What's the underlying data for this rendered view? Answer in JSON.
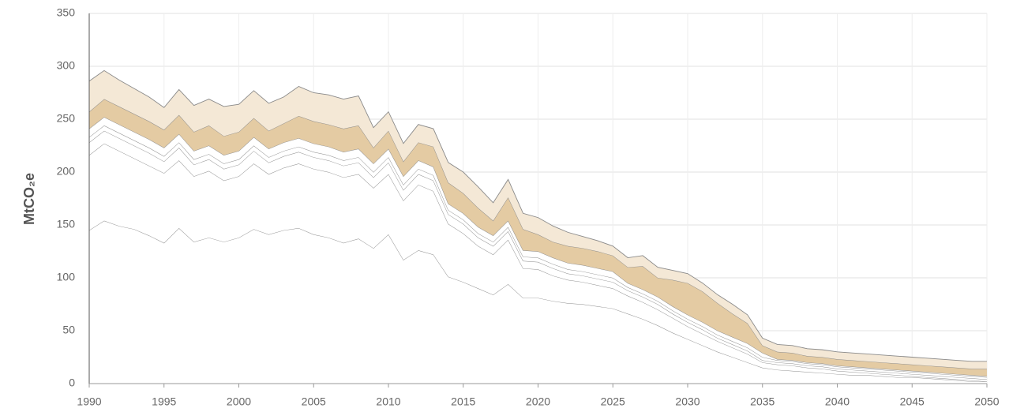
{
  "chart_data": {
    "type": "stacked-area",
    "y_label": "MtCO₂e",
    "x": [
      1990,
      1991,
      1992,
      1993,
      1994,
      1995,
      1996,
      1997,
      1998,
      1999,
      2000,
      2001,
      2002,
      2003,
      2004,
      2005,
      2006,
      2007,
      2008,
      2009,
      2010,
      2011,
      2012,
      2013,
      2014,
      2015,
      2016,
      2017,
      2018,
      2019,
      2020,
      2021,
      2022,
      2023,
      2024,
      2025,
      2026,
      2027,
      2028,
      2029,
      2030,
      2031,
      2032,
      2033,
      2034,
      2035,
      2036,
      2037,
      2038,
      2039,
      2040,
      2041,
      2042,
      2043,
      2044,
      2045,
      2046,
      2047,
      2048,
      2049,
      2050
    ],
    "xlim": [
      1990,
      2050
    ],
    "xticks": [
      1990,
      1995,
      2000,
      2005,
      2010,
      2015,
      2020,
      2025,
      2030,
      2035,
      2040,
      2045,
      2050
    ],
    "ylim": [
      0,
      350
    ],
    "yticks": [
      0,
      50,
      100,
      150,
      200,
      250,
      300,
      350
    ],
    "grid": true,
    "series": [
      {
        "color": "#ffffff",
        "values": [
          145,
          154,
          149,
          146,
          140,
          133,
          147,
          134,
          138,
          134,
          138,
          146,
          141,
          145,
          147,
          141,
          138,
          133,
          137,
          128,
          141,
          117,
          126,
          122,
          101,
          96,
          90,
          84,
          94,
          81,
          81,
          78,
          76,
          75,
          73,
          71,
          66,
          61,
          55,
          48,
          42,
          36,
          30,
          25,
          20,
          15,
          13,
          12,
          11,
          10,
          9,
          8,
          8,
          7,
          6,
          6,
          5,
          4,
          3,
          2,
          2
        ]
      },
      {
        "color": "#ffffff",
        "values": [
          71,
          73,
          71,
          67,
          66,
          66,
          64,
          62,
          63,
          58,
          58,
          62,
          57,
          59,
          61,
          62,
          62,
          62,
          61,
          57,
          57,
          56,
          62,
          60,
          50,
          46,
          40,
          38,
          42,
          28,
          27,
          24,
          22,
          21,
          20,
          19,
          17,
          16,
          15,
          14,
          12,
          11,
          10,
          9,
          8,
          5,
          5,
          5,
          4,
          4,
          3,
          3,
          2,
          2,
          2,
          1,
          1,
          1,
          1,
          1,
          0
        ]
      },
      {
        "color": "#ffffff",
        "values": [
          12,
          12,
          12,
          12,
          12,
          11,
          12,
          11,
          11,
          11,
          11,
          12,
          11,
          11,
          11,
          11,
          11,
          11,
          11,
          10,
          11,
          10,
          10,
          10,
          9,
          9,
          8,
          8,
          8,
          7,
          7,
          7,
          6,
          6,
          6,
          6,
          5,
          5,
          5,
          4,
          4,
          4,
          3,
          3,
          3,
          2,
          2,
          2,
          2,
          2,
          2,
          2,
          2,
          2,
          2,
          2,
          2,
          2,
          2,
          2,
          2
        ]
      },
      {
        "color": "#ffffff",
        "values": [
          5,
          5,
          5,
          5,
          5,
          5,
          5,
          5,
          5,
          5,
          5,
          5,
          5,
          5,
          5,
          5,
          5,
          5,
          5,
          5,
          5,
          5,
          5,
          5,
          4,
          4,
          4,
          4,
          4,
          4,
          4,
          4,
          4,
          4,
          4,
          4,
          3,
          3,
          3,
          3,
          3,
          3,
          3,
          3,
          3,
          3,
          2,
          2,
          2,
          2,
          2,
          2,
          2,
          2,
          2,
          2,
          2,
          2,
          2,
          2,
          2
        ]
      },
      {
        "color": "#ffffff",
        "values": [
          8,
          8,
          8,
          8,
          8,
          8,
          8,
          8,
          8,
          8,
          8,
          8,
          8,
          8,
          8,
          8,
          8,
          8,
          8,
          8,
          8,
          8,
          8,
          8,
          6,
          6,
          6,
          6,
          6,
          6,
          6,
          6,
          6,
          6,
          6,
          6,
          4,
          4,
          4,
          4,
          4,
          4,
          4,
          4,
          4,
          4,
          1,
          1,
          1,
          1,
          1,
          1,
          1,
          1,
          1,
          1,
          1,
          1,
          1,
          1,
          1
        ]
      },
      {
        "color": "#e4cba3",
        "values": [
          16,
          17,
          17,
          17,
          17,
          17,
          18,
          18,
          19,
          18,
          18,
          18,
          17,
          18,
          21,
          21,
          21,
          22,
          22,
          15,
          17,
          14,
          17,
          19,
          20,
          19,
          18,
          14,
          22,
          20,
          16,
          15,
          16,
          16,
          16,
          15,
          15,
          22,
          18,
          25,
          30,
          29,
          26,
          22,
          19,
          7,
          7,
          7,
          6,
          6,
          6,
          6,
          6,
          6,
          6,
          6,
          6,
          6,
          6,
          6,
          7
        ]
      },
      {
        "color": "#f4e8d6",
        "values": [
          29,
          27,
          25,
          24,
          23,
          21,
          24,
          25,
          25,
          28,
          26,
          26,
          26,
          25,
          28,
          27,
          28,
          28,
          28,
          19,
          18,
          17,
          17,
          17,
          19,
          20,
          20,
          17,
          17,
          15,
          16,
          15,
          13,
          11,
          10,
          9,
          9,
          10,
          10,
          9,
          9,
          8,
          8,
          9,
          8,
          7,
          7,
          7,
          7,
          7,
          7,
          7,
          7,
          7,
          7,
          7,
          7,
          7,
          7,
          7,
          7
        ]
      }
    ]
  }
}
